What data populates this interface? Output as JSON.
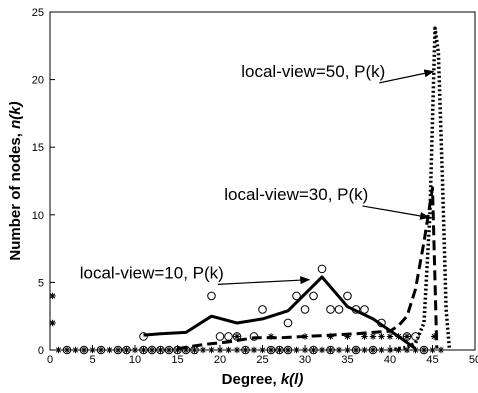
{
  "chart_data": {
    "type": "line",
    "xlabel_prefix": "Degree, ",
    "xlabel_var": "k(l)",
    "ylabel_prefix": "Number of nodes, ",
    "ylabel_var": "n(k)",
    "xlim": [
      0,
      50
    ],
    "ylim": [
      0,
      25
    ],
    "xticks": [
      0,
      5,
      10,
      15,
      20,
      25,
      30,
      35,
      40,
      45,
      50
    ],
    "yticks": [
      0,
      5,
      10,
      15,
      20,
      25
    ],
    "grid": false,
    "legend": "none",
    "annotations": [
      {
        "text": "local-view=50, P(k)",
        "x": 22.5,
        "y": 20.2,
        "arrow_to": [
          45.1,
          20.6
        ]
      },
      {
        "text": "local-view=30, P(k)",
        "x": 20.5,
        "y": 11.1,
        "arrow_to": [
          44.6,
          9.8
        ]
      },
      {
        "text": "local-view=10, P(k)",
        "x": 3.5,
        "y": 5.3,
        "arrow_to": [
          30.5,
          5.2
        ]
      }
    ],
    "series": [
      {
        "style": "solid",
        "x": [
          11,
          13,
          16,
          19,
          22,
          25,
          28,
          32,
          35,
          38,
          41,
          43
        ],
        "y": [
          1.1,
          1.2,
          1.3,
          2.5,
          2.0,
          2.3,
          2.9,
          5.4,
          3.2,
          2.3,
          1.0,
          0.1
        ]
      },
      {
        "style": "dashed",
        "x": [
          15,
          18,
          21,
          24,
          27,
          30,
          33,
          36,
          38,
          40,
          41,
          42,
          43,
          44,
          45,
          45.5
        ],
        "y": [
          0.1,
          0.4,
          0.6,
          0.9,
          0.9,
          1.0,
          1.1,
          1.2,
          1.3,
          1.4,
          1.8,
          2.5,
          4.5,
          8.0,
          12.0,
          0.1
        ]
      },
      {
        "style": "dotted",
        "x": [
          40,
          42,
          43,
          44,
          44.7,
          45.3,
          45.7,
          46.2,
          46.6,
          47
        ],
        "y": [
          0.0,
          0.2,
          0.5,
          2.0,
          10.0,
          23.8,
          22.0,
          12.0,
          3.0,
          0.0
        ]
      },
      {
        "style": "circle-markers",
        "x": [
          11,
          19,
          20,
          21,
          22,
          24,
          25,
          28,
          29,
          30,
          31,
          32,
          33,
          34,
          35,
          36,
          37,
          39,
          42,
          43
        ],
        "y": [
          1,
          4,
          1,
          1,
          1,
          1,
          3,
          2,
          4,
          3,
          4,
          6,
          3,
          3,
          4,
          3,
          3,
          2,
          1,
          1
        ]
      },
      {
        "style": "circle-markers",
        "x": [
          2,
          4,
          6,
          8,
          9,
          11,
          12,
          13,
          14,
          15,
          16,
          17,
          23,
          26,
          27,
          28,
          31,
          33,
          36,
          38,
          44
        ],
        "y": [
          0,
          0,
          0,
          0,
          0,
          0,
          0,
          0,
          0,
          0,
          0,
          0,
          0,
          0,
          0,
          0,
          0,
          0,
          0,
          0,
          0
        ]
      },
      {
        "style": "star-markers",
        "x": [
          0.3,
          0.3,
          1,
          2,
          3,
          4,
          5,
          6,
          7,
          8,
          9,
          10,
          11,
          12,
          13,
          14,
          15,
          16,
          17,
          18,
          19,
          20,
          21,
          22,
          23,
          24,
          25,
          26,
          27,
          28,
          29,
          30,
          31,
          32,
          33,
          34,
          35,
          36,
          37,
          38,
          39,
          40,
          41,
          42,
          43,
          44,
          45,
          45.2,
          46
        ],
        "y": [
          4,
          2,
          0,
          0,
          0,
          0,
          0,
          0,
          0,
          0,
          0,
          0,
          0,
          0,
          0,
          0,
          0,
          0,
          0,
          0,
          0,
          0,
          0,
          0,
          0,
          0,
          0,
          0,
          0,
          0,
          0,
          0,
          0,
          0,
          0,
          0,
          0,
          0,
          0,
          0,
          0,
          0,
          0,
          0,
          0,
          0,
          0,
          1,
          0
        ]
      },
      {
        "style": "star-markers",
        "x": [
          22,
          26,
          30,
          33,
          35,
          37,
          38,
          39,
          40,
          41,
          42
        ],
        "y": [
          1,
          1,
          1,
          1,
          1,
          1,
          1,
          1,
          1,
          1,
          1
        ]
      }
    ]
  }
}
